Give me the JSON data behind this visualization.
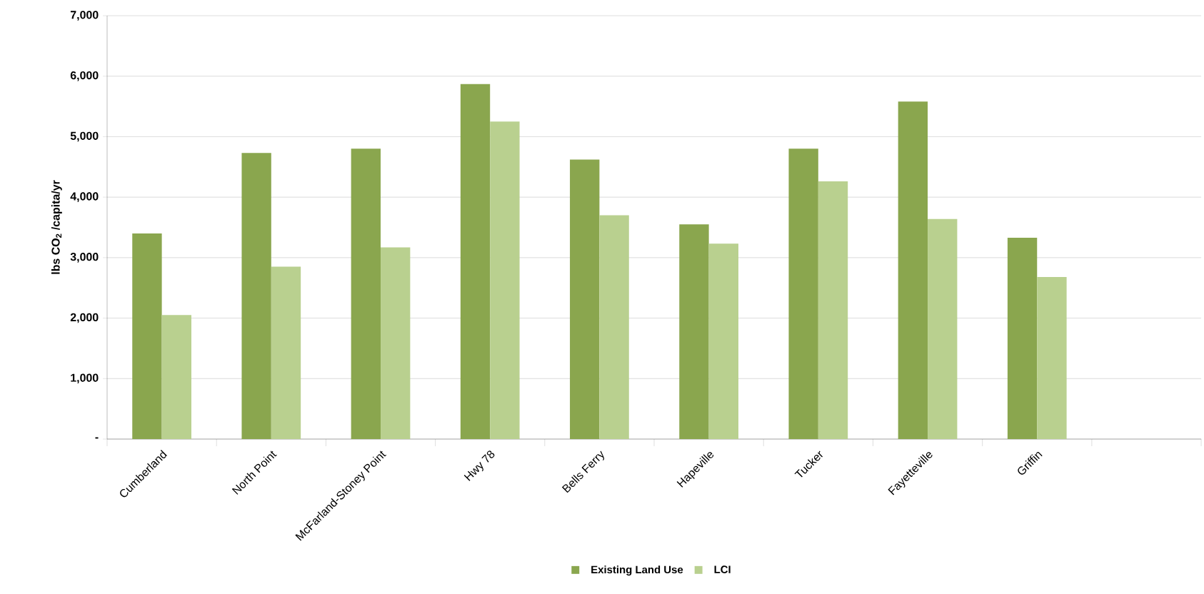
{
  "chart_data": {
    "type": "bar",
    "ylabel": "lbs CO$_{2}$ /capita/yr",
    "categories": [
      "Cumberland",
      "North Point",
      "McFarland-Stoney Point",
      "Hwy 78",
      "Bells Ferry",
      "Hapeville",
      "Tucker",
      "Fayetteville",
      "Griffin",
      null
    ],
    "series": [
      {
        "name": "Existing Land Use",
        "color": "#8aa64e",
        "values": [
          3400,
          4730,
          4800,
          5870,
          4620,
          3550,
          4800,
          5580,
          3330,
          null
        ]
      },
      {
        "name": "LCI",
        "color": "#b9d08f",
        "values": [
          2050,
          2850,
          3170,
          5250,
          3700,
          3230,
          4260,
          3640,
          2680,
          null
        ]
      }
    ],
    "ylim": [
      0,
      7000
    ],
    "yticks": [
      {
        "value": 0,
        "label": "-"
      },
      {
        "value": 1000,
        "label": "1,000"
      },
      {
        "value": 2000,
        "label": "2,000"
      },
      {
        "value": 3000,
        "label": "3,000"
      },
      {
        "value": 4000,
        "label": "4,000"
      },
      {
        "value": 5000,
        "label": "5,000"
      },
      {
        "value": 6000,
        "label": "6,000"
      },
      {
        "value": 7000,
        "label": "7,000"
      }
    ],
    "grid": "y",
    "legend": "bottom"
  }
}
